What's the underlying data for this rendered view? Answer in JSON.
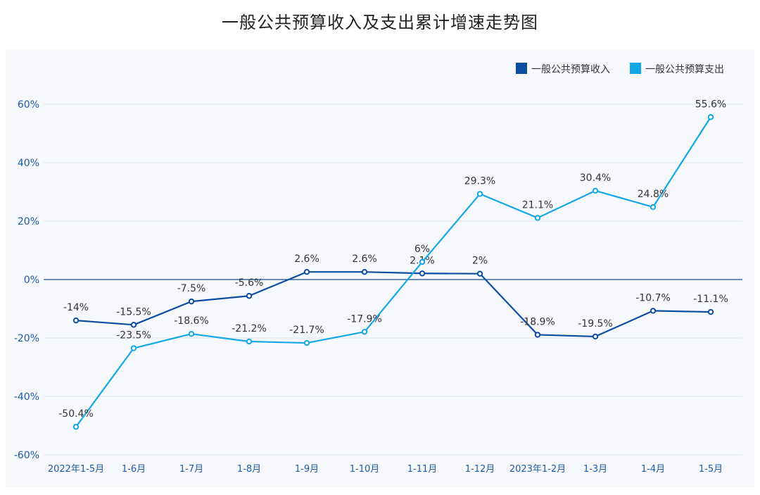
{
  "chart_data": {
    "type": "line",
    "title": "一般公共预算收入及支出累计增速走势图",
    "categories": [
      "2022年1-5月",
      "1-6月",
      "1-7月",
      "1-8月",
      "1-9月",
      "1-10月",
      "1-11月",
      "1-12月",
      "2023年1-2月",
      "1-3月",
      "1-4月",
      "1-5月"
    ],
    "series": [
      {
        "name": "一般公共预算收入",
        "color": "#0b4ea2",
        "values": [
          -14,
          -15.5,
          -7.5,
          -5.6,
          2.6,
          2.6,
          2.1,
          2,
          -18.9,
          -19.5,
          -10.7,
          -11.1
        ],
        "labels": [
          "-14%",
          "-15.5%",
          "-7.5%",
          "-5.6%",
          "2.6%",
          "2.6%",
          "2.1%",
          "2%",
          "-18.9%",
          "-19.5%",
          "-10.7%",
          "-11.1%"
        ]
      },
      {
        "name": "一般公共预算支出",
        "color": "#12a7e6",
        "values": [
          -50.4,
          -23.5,
          -18.6,
          -21.2,
          -21.7,
          -17.9,
          6,
          29.3,
          21.1,
          30.4,
          24.8,
          55.6
        ],
        "labels": [
          "-50.4%",
          "-23.5%",
          "-18.6%",
          "-21.2%",
          "-21.7%",
          "-17.9%",
          "6%",
          "29.3%",
          "21.1%",
          "30.4%",
          "24.8%",
          "55.6%"
        ]
      }
    ],
    "ylim": [
      -60,
      60
    ],
    "yticks": [
      60,
      40,
      20,
      0,
      -20,
      -40,
      -60
    ],
    "ytick_labels": [
      "60%",
      "40%",
      "20%",
      "0%",
      "-20%",
      "-40%",
      "-60%"
    ],
    "legend_position": "top-right",
    "xlabel": "",
    "ylabel": ""
  }
}
